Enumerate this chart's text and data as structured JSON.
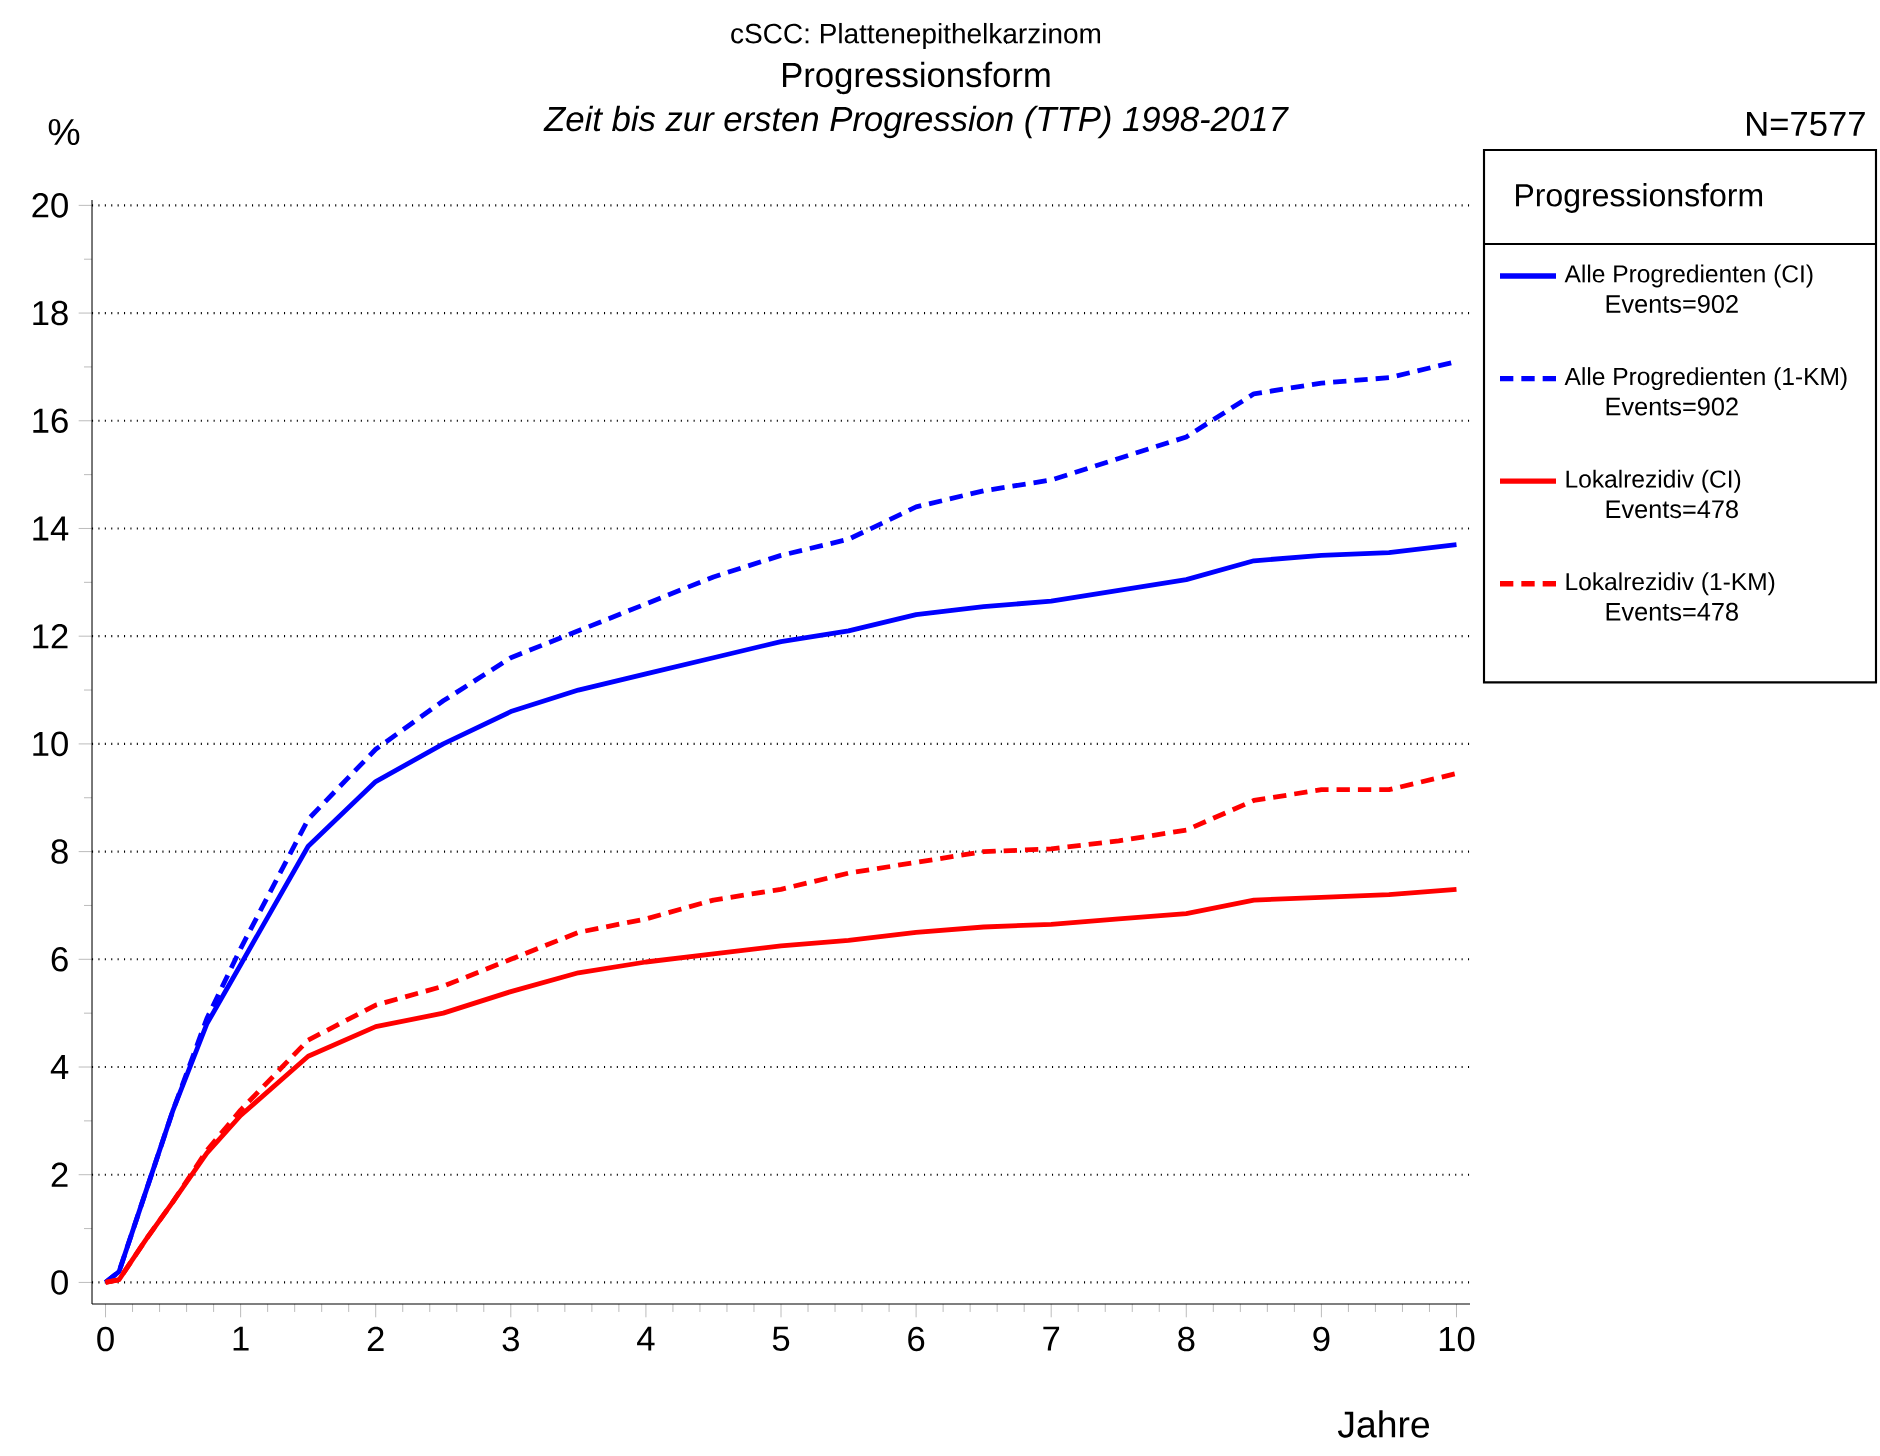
{
  "chart_data": {
    "type": "line",
    "title": "Progressionsform",
    "subtitle": "Zeit bis zur ersten Progression (TTP) 1998-2017",
    "xlabel": "Jahre",
    "ylabel": "%",
    "legend_title": "Progressionsform",
    "annotations": [
      "cSCC: Plattenepithelkarzinom",
      "N=7577",
      "Events=902",
      "Events=902",
      "Events=478",
      "Events=478"
    ],
    "x": [
      0,
      0.1,
      0.3,
      0.5,
      0.75,
      1,
      1.5,
      2,
      2.5,
      3,
      3.5,
      4,
      4.5,
      5,
      5.5,
      6,
      6.5,
      7,
      7.5,
      8,
      8.5,
      9,
      9.5,
      10
    ],
    "series": [
      {
        "name": "Alle Progredienten (CI)",
        "color": "#0000ff",
        "line_style": "solid",
        "values": [
          0,
          0.2,
          1.7,
          3.2,
          4.8,
          5.9,
          8.1,
          9.3,
          10.0,
          10.6,
          11.0,
          11.3,
          11.6,
          11.9,
          12.1,
          12.4,
          12.55,
          12.65,
          12.85,
          13.05,
          13.4,
          13.5,
          13.55,
          13.7
        ]
      },
      {
        "name": "Alle Progredienten (1-KM)",
        "color": "#0000ff",
        "line_style": "dashed",
        "values": [
          0,
          0.2,
          1.7,
          3.2,
          4.9,
          6.2,
          8.6,
          9.9,
          10.8,
          11.6,
          12.1,
          12.6,
          13.1,
          13.5,
          13.8,
          14.4,
          14.7,
          14.9,
          15.3,
          15.7,
          16.5,
          16.7,
          16.8,
          17.1
        ]
      },
      {
        "name": "Lokalrezidiv (CI)",
        "color": "#ff0000",
        "line_style": "solid",
        "values": [
          0,
          0.05,
          0.8,
          1.5,
          2.4,
          3.1,
          4.2,
          4.75,
          5.0,
          5.4,
          5.75,
          5.95,
          6.1,
          6.25,
          6.35,
          6.5,
          6.6,
          6.65,
          6.75,
          6.85,
          7.1,
          7.15,
          7.2,
          7.3
        ]
      },
      {
        "name": "Lokalrezidiv (1-KM)",
        "color": "#ff0000",
        "line_style": "dashed",
        "values": [
          0,
          0.05,
          0.8,
          1.5,
          2.45,
          3.2,
          4.5,
          5.15,
          5.5,
          6.0,
          6.5,
          6.75,
          7.1,
          7.3,
          7.6,
          7.8,
          8.0,
          8.05,
          8.2,
          8.4,
          8.95,
          9.15,
          9.15,
          9.45
        ]
      }
    ],
    "xlim": [
      -0.1,
      10.1
    ],
    "ylim": [
      -0.4,
      20.1
    ],
    "xticks": [
      0,
      1,
      2,
      3,
      4,
      5,
      6,
      7,
      8,
      9,
      10
    ],
    "yticks": [
      0,
      2,
      4,
      6,
      8,
      10,
      12,
      14,
      16,
      18,
      20
    ],
    "grid": "y",
    "legend": "right"
  }
}
